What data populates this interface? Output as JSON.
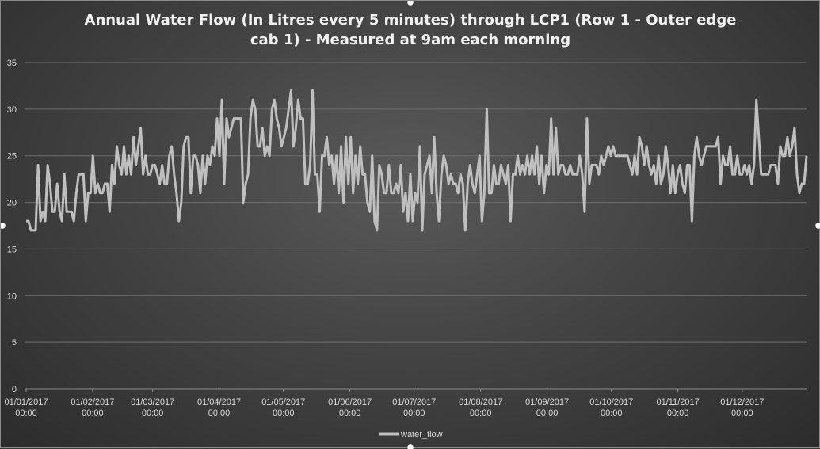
{
  "chart_data": {
    "type": "line",
    "title_line1": "Annual Water Flow (In Litres every 5 minutes) through LCP1 (Row 1 - Outer edge",
    "title_line2": "cab 1) - Measured at 9am each morning",
    "xlabel": "",
    "ylabel": "",
    "ylim": [
      0,
      35
    ],
    "yticks": [
      0,
      5,
      10,
      15,
      20,
      25,
      30,
      35
    ],
    "xticks": [
      {
        "date": "01/01/2017",
        "time": "00:00",
        "day": 0
      },
      {
        "date": "01/02/2017",
        "time": "00:00",
        "day": 31
      },
      {
        "date": "01/03/2017",
        "time": "00:00",
        "day": 59
      },
      {
        "date": "01/04/2017",
        "time": "00:00",
        "day": 90
      },
      {
        "date": "01/05/2017",
        "time": "00:00",
        "day": 120
      },
      {
        "date": "01/06/2017",
        "time": "00:00",
        "day": 151
      },
      {
        "date": "01/07/2017",
        "time": "00:00",
        "day": 181
      },
      {
        "date": "01/08/2017",
        "time": "00:00",
        "day": 212
      },
      {
        "date": "01/09/2017",
        "time": "00:00",
        "day": 243
      },
      {
        "date": "01/10/2017",
        "time": "00:00",
        "day": 273
      },
      {
        "date": "01/11/2017",
        "time": "00:00",
        "day": 304
      },
      {
        "date": "01/12/2017",
        "time": "00:00",
        "day": 334
      }
    ],
    "grid": true,
    "legend_position": "bottom",
    "series": [
      {
        "name": "water_flow",
        "color": "#bfbfbf",
        "values": [
          18,
          18,
          17,
          17,
          17,
          24,
          18,
          19,
          18,
          24,
          22,
          19,
          19,
          22,
          19,
          18,
          23,
          19,
          19,
          19,
          18,
          21,
          23,
          23,
          23,
          18,
          21,
          21,
          25,
          21,
          22,
          21,
          21,
          22,
          22,
          19,
          24,
          22,
          26,
          24,
          23,
          26,
          23,
          25,
          23,
          27,
          24,
          26,
          28,
          23,
          25,
          23,
          23,
          24,
          24,
          23,
          22,
          24,
          22,
          22,
          25,
          26,
          23,
          21,
          18,
          20,
          26,
          27,
          27,
          21,
          25,
          25,
          24,
          21,
          25,
          22,
          25,
          24,
          26,
          25,
          29,
          25,
          31,
          22,
          29,
          27,
          28,
          29,
          29,
          29,
          29,
          20,
          22,
          23,
          29,
          31,
          30,
          26,
          26,
          28,
          25,
          26,
          25,
          30,
          31,
          29,
          28,
          26,
          27,
          28,
          30,
          32,
          26,
          28,
          31,
          29,
          29,
          22,
          22,
          24,
          32,
          23,
          23,
          19,
          25,
          25,
          27,
          24,
          25,
          22,
          25,
          21,
          26,
          20,
          27,
          22,
          27,
          21,
          25,
          22,
          26,
          23,
          23,
          20,
          19,
          25,
          18,
          17,
          24,
          23,
          21,
          21,
          24,
          21,
          21,
          22,
          21,
          24,
          19,
          21,
          18,
          23,
          18,
          21,
          20,
          26,
          17,
          23,
          24,
          25,
          21,
          27,
          21,
          18,
          23,
          25,
          24,
          22,
          23,
          22,
          22,
          21,
          23,
          22,
          17,
          22,
          24,
          22,
          21,
          23,
          25,
          18,
          21,
          30,
          21,
          21,
          24,
          22,
          22,
          24,
          23,
          22,
          24,
          18,
          23,
          23,
          25,
          23,
          24,
          23,
          25,
          23,
          25,
          23,
          26,
          22,
          25,
          21,
          24,
          23,
          29,
          23,
          28,
          23,
          24,
          24,
          23,
          23,
          24,
          23,
          23,
          23,
          25,
          23,
          19,
          29,
          22,
          24,
          24,
          24,
          23,
          25,
          24,
          25,
          26,
          25,
          26,
          25,
          25,
          25,
          25,
          25,
          25,
          24,
          23,
          25,
          23,
          27,
          26,
          24,
          26,
          24,
          23,
          24,
          22,
          25,
          22,
          23,
          26,
          24,
          21,
          24,
          21,
          23,
          24,
          22,
          21,
          24,
          24,
          18,
          25,
          27,
          25,
          24,
          25,
          26,
          26,
          26,
          26,
          26,
          27,
          22,
          25,
          24,
          24,
          26,
          23,
          23,
          25,
          23,
          23,
          24,
          23,
          24,
          22,
          24,
          31,
          27,
          23,
          23,
          23,
          23,
          24,
          24,
          24,
          22,
          26,
          25,
          25,
          27,
          25,
          26,
          28,
          23,
          21,
          22,
          22,
          25
        ]
      }
    ]
  }
}
